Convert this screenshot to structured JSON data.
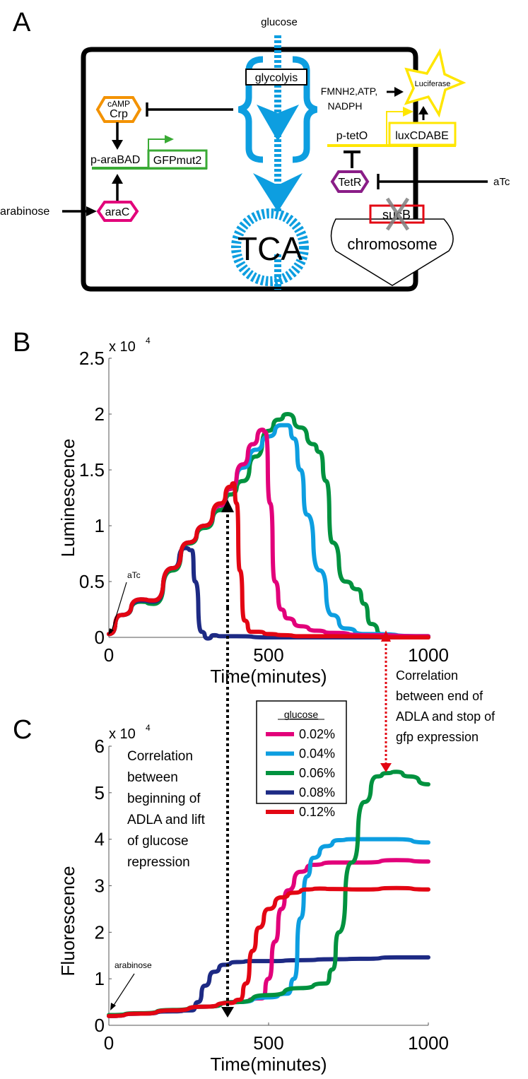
{
  "panels": {
    "a": {
      "label": "A",
      "glucose": "glucose",
      "glycolysis": "glycolyis",
      "tca": "TCA",
      "camp": "cAMP",
      "crp": "Crp",
      "p_arabad": "p-araBAD",
      "gfp": "GFPmut2",
      "arabinose": "arabinose",
      "arac": "araC",
      "cofactors_1": "FMNH2,ATP,",
      "cofactors_2": "NADPH",
      "luciferase": "Luciferase",
      "p_teto": "p-tetO",
      "lux": "luxCDABE",
      "tetr": "TetR",
      "atc": "aTc",
      "sucb": "sucB",
      "chromosome": "chromosome",
      "colors": {
        "glucose_path": "#0d9ee0",
        "crp": "#f39200",
        "arac": "#e2007a",
        "gfp": "#3aaa35",
        "lux": "#ffe600",
        "tetr": "#8a1d87",
        "sucb": "#e30613",
        "knockout": "#808080"
      }
    },
    "b": {
      "label": "B"
    },
    "c": {
      "label": "C"
    }
  },
  "annotations": {
    "b_atc": "aTc",
    "c_arabinose": "arabinose",
    "corr_begin": [
      "Correlation",
      "between",
      "beginning of",
      "ADLA and lift",
      "of glucose",
      "repression"
    ],
    "corr_end": [
      "Correlation",
      "between end of",
      "ADLA and stop of",
      "gfp expression"
    ],
    "corr_end_color": "#e30613"
  },
  "legend": {
    "title": "glucose",
    "entries": [
      {
        "label": "0.02%",
        "color": "#e2007a"
      },
      {
        "label": "0.04%",
        "color": "#0d9ee0"
      },
      {
        "label": "0.06%",
        "color": "#00923f"
      },
      {
        "label": "0.08%",
        "color": "#1d2a84"
      },
      {
        "label": "0.12%",
        "color": "#e30613"
      }
    ]
  },
  "chart_data": [
    {
      "type": "line",
      "title": "",
      "xlabel": "Time(minutes)",
      "ylabel": "Luminescence",
      "y_multiplier": "x 10^4",
      "xlim": [
        0,
        1000
      ],
      "ylim": [
        0,
        2.5
      ],
      "xticks": [
        "0",
        "500",
        "1000"
      ],
      "yticks": [
        "0",
        "0.5",
        "1",
        "1.5",
        "2",
        "2.5"
      ],
      "series": [
        {
          "name": "0.02%",
          "color": "#e2007a",
          "x": [
            0,
            40,
            100,
            140,
            200,
            250,
            300,
            350,
            380,
            420,
            450,
            480,
            490,
            505,
            520,
            540,
            560,
            600,
            650,
            700,
            800,
            1000
          ],
          "y": [
            0.03,
            0.2,
            0.34,
            0.33,
            0.62,
            0.85,
            1.0,
            1.18,
            1.33,
            1.55,
            1.73,
            1.86,
            1.84,
            1.2,
            0.5,
            0.25,
            0.17,
            0.1,
            0.06,
            0.04,
            0.02,
            0.01
          ]
        },
        {
          "name": "0.04%",
          "color": "#0d9ee0",
          "x": [
            0,
            40,
            100,
            140,
            200,
            250,
            300,
            350,
            380,
            420,
            460,
            500,
            540,
            560,
            580,
            600,
            620,
            660,
            700,
            740,
            800,
            1000
          ],
          "y": [
            0.03,
            0.2,
            0.34,
            0.33,
            0.62,
            0.85,
            1.0,
            1.18,
            1.33,
            1.52,
            1.68,
            1.8,
            1.9,
            1.9,
            1.78,
            1.5,
            1.1,
            0.6,
            0.2,
            0.08,
            0.03,
            0.01
          ]
        },
        {
          "name": "0.06%",
          "color": "#00923f",
          "x": [
            0,
            40,
            100,
            140,
            200,
            250,
            300,
            350,
            380,
            420,
            460,
            500,
            530,
            560,
            600,
            640,
            660,
            680,
            700,
            740,
            780,
            800,
            820,
            860,
            900,
            1000
          ],
          "y": [
            0.03,
            0.2,
            0.32,
            0.3,
            0.6,
            0.84,
            0.98,
            1.14,
            1.28,
            1.4,
            1.62,
            1.85,
            1.95,
            2.0,
            1.88,
            1.73,
            1.66,
            1.4,
            0.85,
            0.5,
            0.43,
            0.3,
            0.12,
            0.02,
            0.01,
            0.01
          ]
        },
        {
          "name": "0.08%",
          "color": "#1d2a84",
          "x": [
            0,
            40,
            100,
            140,
            200,
            240,
            260,
            270,
            290,
            310,
            330,
            350,
            400,
            500,
            1000
          ],
          "y": [
            0.03,
            0.2,
            0.33,
            0.32,
            0.62,
            0.8,
            0.78,
            0.5,
            0.05,
            -0.01,
            0.02,
            0.01,
            0.01,
            0.0,
            0.0
          ]
        },
        {
          "name": "0.12%",
          "color": "#e30613",
          "x": [
            0,
            40,
            100,
            140,
            200,
            250,
            300,
            350,
            380,
            390,
            400,
            410,
            425,
            445,
            470,
            500,
            550,
            600,
            700,
            1000
          ],
          "y": [
            0.03,
            0.2,
            0.34,
            0.33,
            0.62,
            0.85,
            1.0,
            1.2,
            1.35,
            1.38,
            1.2,
            0.6,
            0.15,
            0.05,
            0.05,
            0.03,
            0.02,
            0.01,
            0.01,
            0.0
          ]
        }
      ]
    },
    {
      "type": "line",
      "title": "",
      "xlabel": "Time(minutes)",
      "ylabel": "Fluorescence",
      "y_multiplier": "x 10^4",
      "xlim": [
        0,
        1000
      ],
      "ylim": [
        0,
        6
      ],
      "xticks": [
        "0",
        "500",
        "1000"
      ],
      "yticks": [
        "0",
        "1",
        "2",
        "3",
        "4",
        "5",
        "6"
      ],
      "series": [
        {
          "name": "0.02%",
          "color": "#e2007a",
          "x": [
            0,
            100,
            200,
            300,
            400,
            480,
            500,
            520,
            540,
            560,
            600,
            640,
            700,
            800,
            900,
            1000
          ],
          "y": [
            0.2,
            0.25,
            0.32,
            0.4,
            0.5,
            0.58,
            1.0,
            1.8,
            2.5,
            2.9,
            3.3,
            3.45,
            3.5,
            3.5,
            3.55,
            3.52
          ]
        },
        {
          "name": "0.04%",
          "color": "#0d9ee0",
          "x": [
            0,
            100,
            200,
            300,
            400,
            500,
            560,
            580,
            600,
            620,
            640,
            680,
            720,
            760,
            800,
            900,
            1000
          ],
          "y": [
            0.2,
            0.25,
            0.32,
            0.4,
            0.5,
            0.6,
            0.68,
            1.0,
            2.3,
            3.2,
            3.6,
            3.85,
            3.98,
            4.0,
            4.0,
            4.0,
            3.93
          ]
        },
        {
          "name": "0.06%",
          "color": "#00923f",
          "x": [
            0,
            100,
            200,
            300,
            400,
            500,
            600,
            680,
            700,
            720,
            760,
            800,
            840,
            870,
            900,
            940,
            1000
          ],
          "y": [
            0.22,
            0.26,
            0.33,
            0.4,
            0.5,
            0.65,
            0.8,
            0.9,
            1.2,
            2.0,
            3.5,
            4.8,
            5.35,
            5.42,
            5.45,
            5.35,
            5.18
          ]
        },
        {
          "name": "0.08%",
          "color": "#1d2a84",
          "x": [
            0,
            100,
            200,
            260,
            280,
            300,
            330,
            360,
            400,
            450,
            500,
            600,
            700,
            800,
            900,
            1000
          ],
          "y": [
            0.2,
            0.25,
            0.3,
            0.32,
            0.5,
            0.85,
            1.15,
            1.3,
            1.36,
            1.38,
            1.38,
            1.4,
            1.42,
            1.43,
            1.46,
            1.46
          ]
        },
        {
          "name": "0.12%",
          "color": "#e30613",
          "x": [
            0,
            100,
            200,
            300,
            380,
            410,
            430,
            450,
            470,
            500,
            540,
            580,
            620,
            660,
            700,
            800,
            900,
            1000
          ],
          "y": [
            0.2,
            0.25,
            0.32,
            0.4,
            0.48,
            0.55,
            0.9,
            1.6,
            2.1,
            2.5,
            2.75,
            2.85,
            2.92,
            2.94,
            2.93,
            2.92,
            2.95,
            2.92
          ]
        }
      ]
    }
  ]
}
